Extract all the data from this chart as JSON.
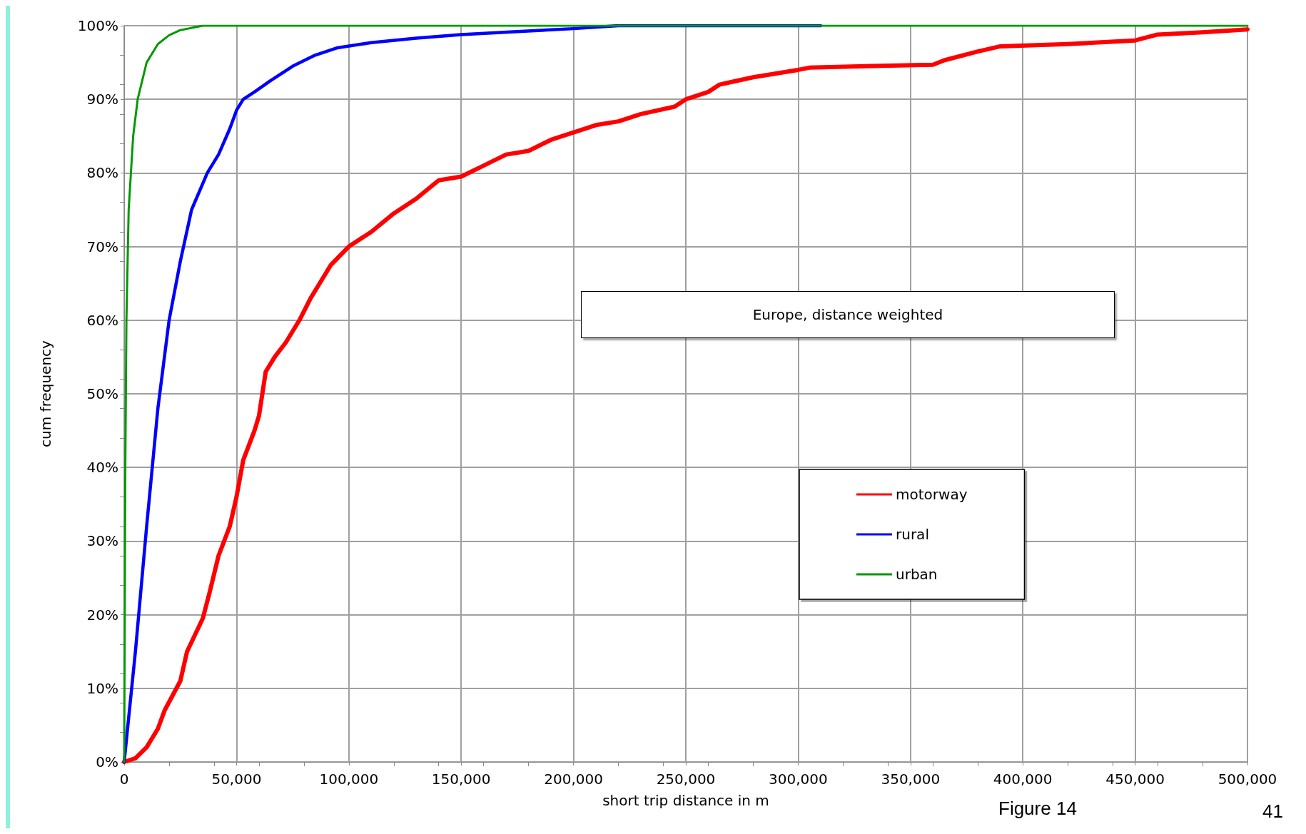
{
  "chart_data": {
    "type": "line",
    "xlabel": "short trip distance in m",
    "ylabel": "cum frequency",
    "xlim": [
      0,
      500000
    ],
    "ylim": [
      0,
      100
    ],
    "xticks": [
      {
        "value": 0,
        "label": "0"
      },
      {
        "value": 50000,
        "label": "50,000"
      },
      {
        "value": 100000,
        "label": "100,000"
      },
      {
        "value": 150000,
        "label": "150,000"
      },
      {
        "value": 200000,
        "label": "200,000"
      },
      {
        "value": 250000,
        "label": "250,000"
      },
      {
        "value": 300000,
        "label": "300,000"
      },
      {
        "value": 350000,
        "label": "350,000"
      },
      {
        "value": 400000,
        "label": "400,000"
      },
      {
        "value": 450000,
        "label": "450,000"
      },
      {
        "value": 500000,
        "label": "500,000"
      }
    ],
    "yticks": [
      {
        "value": 0,
        "label": "0%"
      },
      {
        "value": 10,
        "label": "10%"
      },
      {
        "value": 20,
        "label": "20%"
      },
      {
        "value": 30,
        "label": "30%"
      },
      {
        "value": 40,
        "label": "40%"
      },
      {
        "value": 50,
        "label": "50%"
      },
      {
        "value": 60,
        "label": "60%"
      },
      {
        "value": 70,
        "label": "70%"
      },
      {
        "value": 80,
        "label": "80%"
      },
      {
        "value": 90,
        "label": "90%"
      },
      {
        "value": 100,
        "label": "100%"
      }
    ],
    "grid": true,
    "legend": "right",
    "marker": "none",
    "line_style": "solid",
    "annotations": [
      "Europe, distance weighted",
      "Figure 14",
      "41"
    ],
    "series": [
      {
        "name": "motorway",
        "color": "#ff0000",
        "x": [
          0,
          5000,
          10000,
          15000,
          18000,
          25000,
          28000,
          35000,
          38000,
          42000,
          47000,
          50000,
          53000,
          58000,
          60000,
          63000,
          67000,
          72000,
          78000,
          83000,
          87000,
          92000,
          100000,
          110000,
          120000,
          130000,
          140000,
          150000,
          160000,
          170000,
          180000,
          190000,
          200000,
          210000,
          220000,
          230000,
          245000,
          250000,
          260000,
          265000,
          280000,
          300000,
          305000,
          330000,
          360000,
          365000,
          380000,
          390000,
          420000,
          450000,
          460000,
          480000,
          500000
        ],
        "values": [
          0,
          0.5,
          2,
          4.5,
          7,
          11,
          15,
          19.5,
          23,
          28,
          32,
          36,
          41,
          45,
          47,
          53,
          55,
          57,
          60,
          63,
          65,
          67.5,
          70,
          72,
          74.5,
          76.5,
          79,
          79.5,
          81,
          82.5,
          83,
          84.5,
          85.5,
          86.5,
          87,
          88,
          89,
          90,
          91,
          92,
          93,
          94,
          94.3,
          94.5,
          94.7,
          95.3,
          96.5,
          97.2,
          97.5,
          98,
          98.8,
          99.1,
          99.5
        ]
      },
      {
        "name": "rural",
        "color": "#0000ff",
        "x": [
          0,
          5000,
          10000,
          15000,
          20000,
          25000,
          30000,
          37000,
          42000,
          47000,
          50000,
          53000,
          58000,
          65000,
          75000,
          85000,
          95000,
          110000,
          130000,
          150000,
          175000,
          200000,
          220000,
          310000
        ],
        "values": [
          0,
          15,
          32,
          48,
          60,
          68,
          75,
          80,
          82.5,
          86,
          88.5,
          90,
          91,
          92.5,
          94.5,
          96,
          97,
          97.7,
          98.3,
          98.8,
          99.2,
          99.6,
          100,
          100
        ]
      },
      {
        "name": "urban",
        "color": "#009900",
        "x": [
          0,
          500,
          1000,
          2000,
          4000,
          6000,
          10000,
          15000,
          20000,
          25000,
          35000,
          500000
        ],
        "values": [
          0,
          40,
          60,
          75,
          85,
          90,
          95,
          97.5,
          98.7,
          99.4,
          100,
          100
        ]
      }
    ]
  }
}
